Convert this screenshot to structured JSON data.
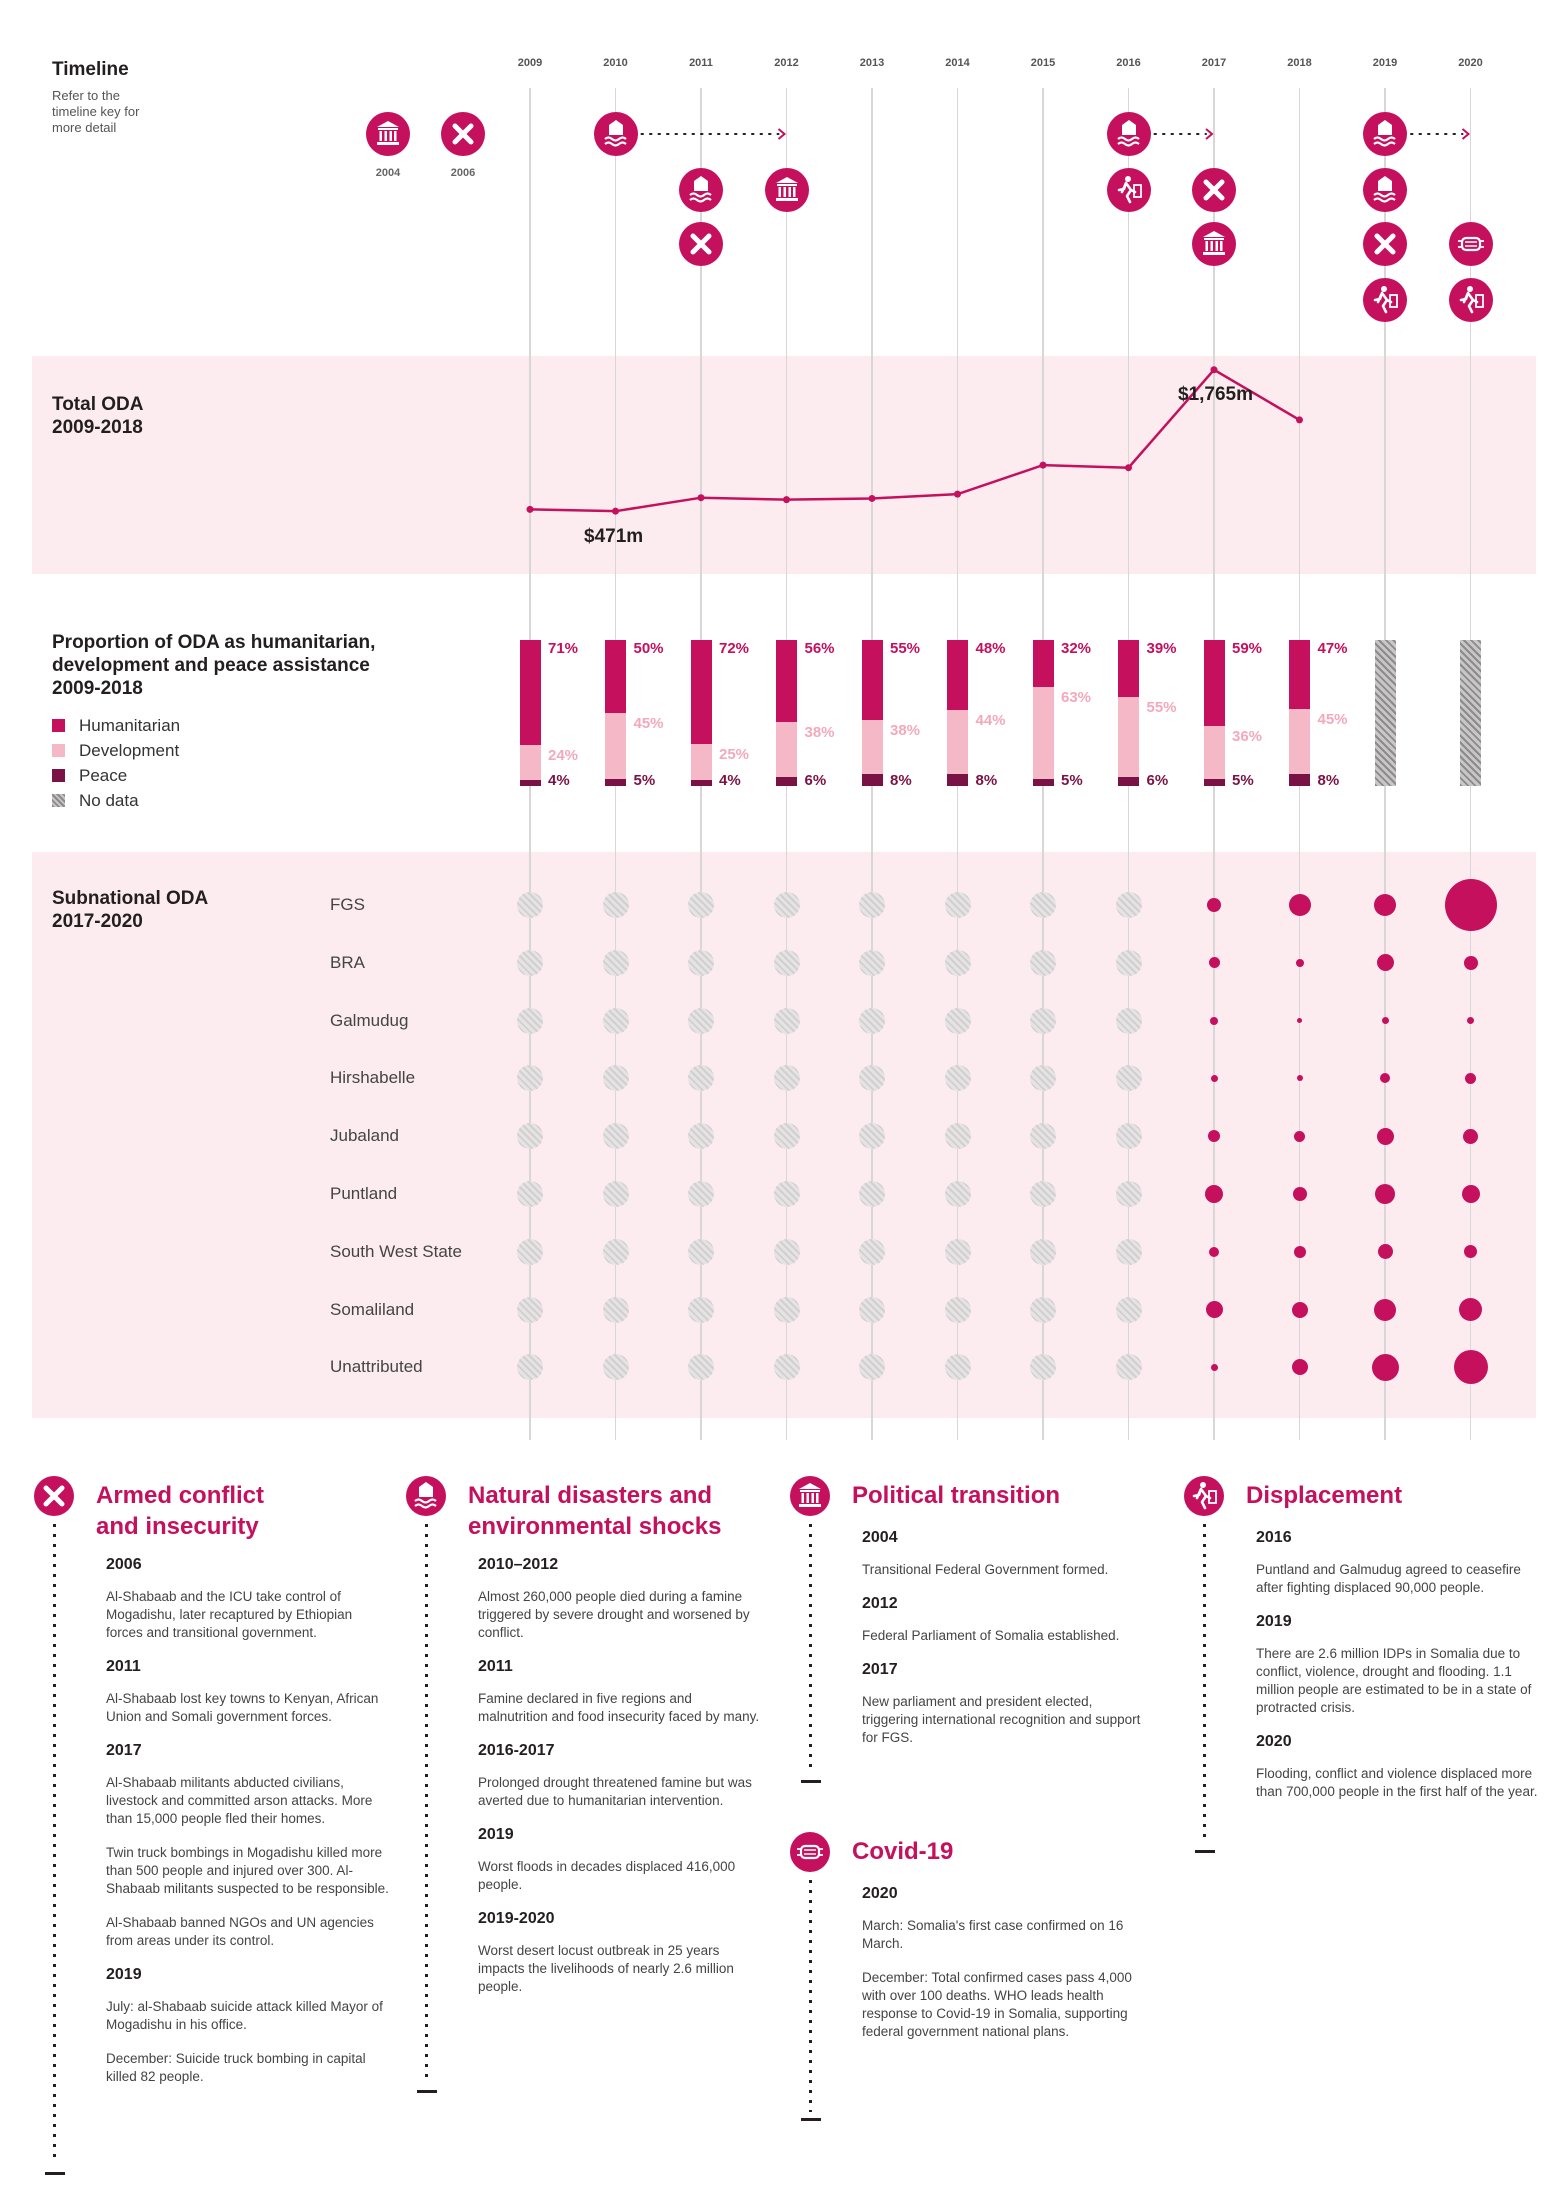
{
  "timeline": {
    "title": "Timeline",
    "subtitle": [
      "Refer to the",
      "timeline key for",
      "more detail"
    ],
    "years": [
      "2009",
      "2010",
      "2011",
      "2012",
      "2013",
      "2014",
      "2015",
      "2016",
      "2017",
      "2018",
      "2019",
      "2020"
    ],
    "pre_years": [
      "2004",
      "2006"
    ]
  },
  "oda_total": {
    "title": [
      "Total ODA",
      "2009-2018"
    ],
    "min_label": "$471m",
    "max_label": "$1,765m"
  },
  "proportion": {
    "title": [
      "Proportion of ODA as humanitarian,",
      "development and peace assistance",
      "2009-2018"
    ],
    "legend": [
      "Humanitarian",
      "Development",
      "Peace",
      "No data"
    ]
  },
  "subnational": {
    "title": [
      "Subnational ODA",
      "2017-2020"
    ],
    "regions": [
      "FGS",
      "BRA",
      "Galmudug",
      "Hirshabelle",
      "Jubaland",
      "Puntland",
      "South West State",
      "Somaliland",
      "Unattributed"
    ]
  },
  "colors": {
    "humanitarian": "#c4105d",
    "development": "#f5b8c6",
    "peace": "#7a1345",
    "band": "#fcecef",
    "nodata": "#9e9b9c"
  },
  "icons": {
    "armed_conflict": "x-circle-icon",
    "natural_disaster": "flood-house-icon",
    "political": "parliament-icon",
    "displacement": "displaced-person-icon",
    "covid": "face-mask-icon"
  },
  "chart_data": [
    {
      "type": "line",
      "x": [
        2009,
        2010,
        2011,
        2012,
        2013,
        2014,
        2015,
        2016,
        2017,
        2018
      ],
      "series": [
        {
          "values": [
            471,
            454,
            579,
            561,
            572,
            612,
            881,
            857,
            1765,
            1300
          ]
        }
      ]
    },
    {
      "type": "bar",
      "categories": [
        "2009",
        "2010",
        "2011",
        "2012",
        "2013",
        "2014",
        "2015",
        "2016",
        "2017",
        "2018",
        "2019",
        "2020"
      ],
      "series": [
        {
          "name": "Humanitarian",
          "values": [
            71,
            50,
            72,
            56,
            55,
            48,
            32,
            39,
            59,
            47,
            null,
            null
          ]
        },
        {
          "name": "Development",
          "values": [
            24,
            45,
            25,
            38,
            38,
            44,
            63,
            55,
            36,
            45,
            null,
            null
          ]
        },
        {
          "name": "Peace",
          "values": [
            4,
            5,
            4,
            6,
            8,
            8,
            5,
            6,
            5,
            8,
            null,
            null
          ]
        }
      ],
      "labels": {
        "humanitarian": [
          "71%",
          "50%",
          "72%",
          "56%",
          "55%",
          "48%",
          "32%",
          "39%",
          "59%",
          "47%"
        ],
        "development": [
          "24%",
          "45%",
          "25%",
          "38%",
          "38%",
          "44%",
          "63%",
          "55%",
          "36%",
          "45%"
        ],
        "peace": [
          "4%",
          "5%",
          "4%",
          "6%",
          "8%",
          "8%",
          "5%",
          "6%",
          "5%",
          "8%"
        ]
      }
    },
    {
      "type": "scatter",
      "x": [
        "2017",
        "2018",
        "2019",
        "2020"
      ],
      "series": [
        {
          "name": "FGS",
          "values": [
            14,
            22,
            22,
            52
          ]
        },
        {
          "name": "BRA",
          "values": [
            11,
            8,
            17,
            14
          ]
        },
        {
          "name": "Galmudug",
          "values": [
            8,
            5,
            7,
            7
          ]
        },
        {
          "name": "Hirshabelle",
          "values": [
            7,
            6,
            10,
            11
          ]
        },
        {
          "name": "Jubaland",
          "values": [
            12,
            11,
            17,
            15
          ]
        },
        {
          "name": "Puntland",
          "values": [
            18,
            14,
            20,
            18
          ]
        },
        {
          "name": "South West State",
          "values": [
            10,
            12,
            15,
            13
          ]
        },
        {
          "name": "Somaliland",
          "values": [
            17,
            16,
            22,
            23
          ]
        },
        {
          "name": "Unattributed",
          "values": [
            7,
            16,
            27,
            34
          ]
        }
      ]
    }
  ],
  "timeline_events": [
    {
      "col": "2004",
      "row": 0,
      "icon": "political"
    },
    {
      "col": "2006",
      "row": 0,
      "icon": "armed_conflict"
    },
    {
      "col": "2010",
      "row": 0,
      "icon": "natural_disaster",
      "arrow_to": "2012"
    },
    {
      "col": "2011",
      "row": 1,
      "icon": "natural_disaster"
    },
    {
      "col": "2011",
      "row": 2,
      "icon": "armed_conflict"
    },
    {
      "col": "2012",
      "row": 1,
      "icon": "political"
    },
    {
      "col": "2016",
      "row": 0,
      "icon": "natural_disaster",
      "arrow_to": "2017"
    },
    {
      "col": "2016",
      "row": 1,
      "icon": "displacement"
    },
    {
      "col": "2017",
      "row": 1,
      "icon": "armed_conflict"
    },
    {
      "col": "2017",
      "row": 2,
      "icon": "political"
    },
    {
      "col": "2019",
      "row": 0,
      "icon": "natural_disaster",
      "arrow_to": "2020"
    },
    {
      "col": "2019",
      "row": 1,
      "icon": "natural_disaster"
    },
    {
      "col": "2019",
      "row": 2,
      "icon": "armed_conflict"
    },
    {
      "col": "2019",
      "row": 3,
      "icon": "displacement"
    },
    {
      "col": "2020",
      "row": 2,
      "icon": "covid"
    },
    {
      "col": "2020",
      "row": 3,
      "icon": "displacement"
    }
  ],
  "key": {
    "armed_conflict": {
      "title": [
        "Armed conflict",
        "and insecurity"
      ],
      "entries": [
        {
          "year": "2006",
          "text": [
            "Al-Shabaab and the ICU take control of Mogadishu, later recaptured by Ethiopian forces and transitional government."
          ]
        },
        {
          "year": "2011",
          "text": [
            "Al-Shabaab lost key towns to Kenyan, African Union and Somali government forces."
          ]
        },
        {
          "year": "2017",
          "text": [
            "Al-Shabaab militants abducted civilians, livestock and committed arson attacks. More than 15,000 people fled their homes.",
            "Twin truck bombings in Mogadishu killed more than 500 people and injured over 300. Al-Shabaab militants suspected to be responsible.",
            "Al-Shabaab banned NGOs and UN agencies from areas under its control."
          ]
        },
        {
          "year": "2019",
          "text": [
            "July: al-Shabaab suicide attack killed Mayor of Mogadishu in his office.",
            "December: Suicide truck bombing in capital killed 82 people."
          ]
        }
      ]
    },
    "natural_disasters": {
      "title": [
        "Natural disasters and",
        "environmental shocks"
      ],
      "entries": [
        {
          "year": "2010–2012",
          "text": [
            "Almost 260,000 people died during a famine triggered by severe drought and worsened by conflict."
          ]
        },
        {
          "year": "2011",
          "text": [
            "Famine declared in five regions and malnutrition and food insecurity faced by many."
          ]
        },
        {
          "year": "2016-2017",
          "text": [
            "Prolonged drought threatened famine but was averted due to humanitarian intervention."
          ]
        },
        {
          "year": "2019",
          "text": [
            "Worst floods in decades displaced 416,000 people."
          ]
        },
        {
          "year": "2019-2020",
          "text": [
            "Worst desert locust outbreak in 25 years impacts the livelihoods of nearly 2.6 million people."
          ]
        }
      ]
    },
    "political_transition": {
      "title": [
        "Political transition"
      ],
      "entries": [
        {
          "year": "2004",
          "text": [
            "Transitional Federal Government formed."
          ]
        },
        {
          "year": "2012",
          "text": [
            "Federal Parliament of Somalia established."
          ]
        },
        {
          "year": "2017",
          "text": [
            "New parliament and president elected, triggering international recognition and support for FGS."
          ]
        }
      ]
    },
    "covid": {
      "title": [
        "Covid-19"
      ],
      "entries": [
        {
          "year": "2020",
          "text": [
            "March: Somalia's first case confirmed on 16 March.",
            "December: Total confirmed cases pass 4,000 with over 100 deaths. WHO leads health response to Covid-19 in Somalia, supporting federal government national plans."
          ]
        }
      ]
    },
    "displacement": {
      "title": [
        "Displacement"
      ],
      "entries": [
        {
          "year": "2016",
          "text": [
            "Puntland and Galmudug agreed to ceasefire after fighting displaced 90,000 people."
          ]
        },
        {
          "year": "2019",
          "text": [
            "There are 2.6 million IDPs in Somalia due to conflict, violence, drought and flooding. 1.1 million people are estimated to be in a state of protracted crisis."
          ]
        },
        {
          "year": "2020",
          "text": [
            "Flooding, conflict and violence displaced more than 700,000 people in the first half of the year."
          ]
        }
      ]
    }
  }
}
